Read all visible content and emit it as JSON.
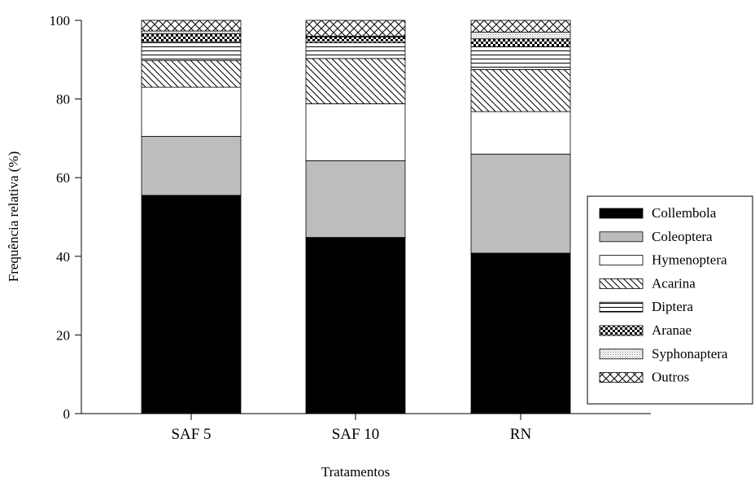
{
  "chart_data": {
    "type": "bar",
    "stacked": true,
    "xlabel": "Tratamentos",
    "ylabel": "Frequência relativa (%)",
    "ylim": [
      0,
      100
    ],
    "yticks": [
      0,
      20,
      40,
      60,
      80,
      100
    ],
    "categories": [
      "SAF 5",
      "SAF 10",
      "RN"
    ],
    "legend_position": "right",
    "series": [
      {
        "name": "Collembola",
        "pattern": "solid-black",
        "values": [
          55.5,
          44.8,
          40.8
        ]
      },
      {
        "name": "Coleoptera",
        "pattern": "solid-gray",
        "values": [
          15.0,
          19.5,
          25.2
        ]
      },
      {
        "name": "Hymenoptera",
        "pattern": "white",
        "values": [
          12.5,
          14.5,
          10.8
        ]
      },
      {
        "name": "Acarina",
        "pattern": "diagonal",
        "values": [
          6.8,
          11.5,
          10.7
        ]
      },
      {
        "name": "Diptera",
        "pattern": "horizontal",
        "values": [
          4.8,
          4.0,
          5.8
        ]
      },
      {
        "name": "Aranae",
        "pattern": "checker",
        "values": [
          2.0,
          1.5,
          2.0
        ]
      },
      {
        "name": "Syphonaptera",
        "pattern": "dots",
        "values": [
          0.7,
          0.2,
          1.7
        ]
      },
      {
        "name": "Outros",
        "pattern": "crosshatch",
        "values": [
          2.7,
          4.0,
          3.0
        ]
      }
    ]
  }
}
